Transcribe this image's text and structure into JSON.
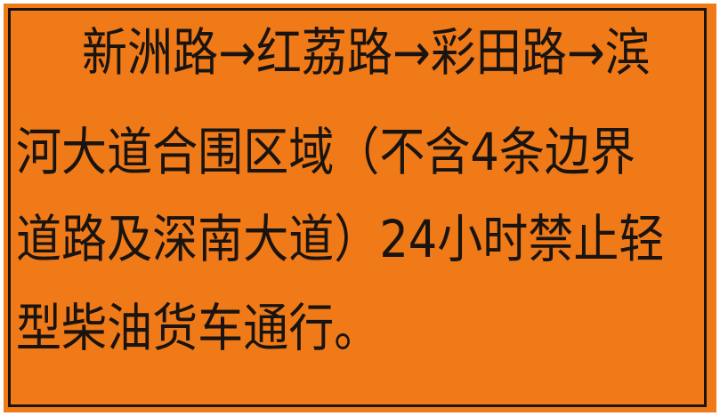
{
  "background_color": "#f07a18",
  "border_color": "#1a1410",
  "text_color": "#1a1410",
  "lines": [
    "新洲路→红荔路→彩田路→滨",
    "河大道合围区域（不含4条边界",
    "道路及深南大道）24小时禁止轻",
    "型柴油货车通行。"
  ]
}
